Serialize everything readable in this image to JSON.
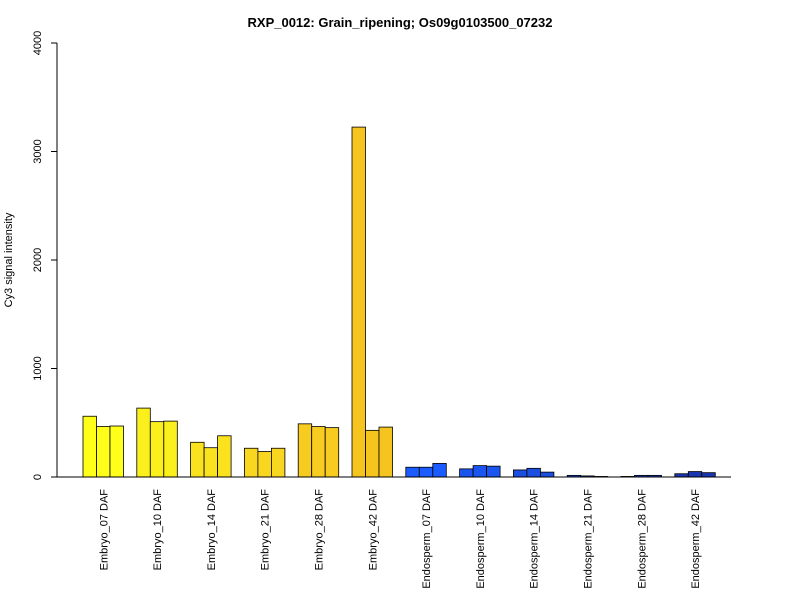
{
  "chart_data": {
    "type": "bar",
    "title": "RXP_0012: Grain_ripening; Os09g0103500_07232",
    "xlabel": "",
    "ylabel": "Cy3 signal intensity",
    "ylim": [
      0,
      4000
    ],
    "yticks": [
      "0",
      "1000",
      "2000",
      "3000",
      "4000"
    ],
    "grid": false,
    "categories": [
      "Embryo_07 DAF",
      "Embryo_10 DAF",
      "Embryo_14 DAF",
      "Embryo_21 DAF",
      "Embryo_28 DAF",
      "Embryo_42 DAF",
      "Endosperm_07 DAF",
      "Endosperm_10 DAF",
      "Endosperm_14 DAF",
      "Endosperm_21 DAF",
      "Endosperm_28 DAF",
      "Endosperm_42 DAF"
    ],
    "group_colors": [
      "#ffff1a",
      "#fcf01c",
      "#fbe21e",
      "#f9d61f",
      "#f7cb20",
      "#f5c41e",
      "#1a5cff",
      "#1a55f0",
      "#1a4fe0",
      "#1a45cf",
      "#1a3fbf",
      "#1a36b0"
    ],
    "values": [
      [
        560,
        465,
        470
      ],
      [
        635,
        510,
        515
      ],
      [
        320,
        270,
        380
      ],
      [
        265,
        235,
        265
      ],
      [
        490,
        465,
        455
      ],
      [
        3225,
        430,
        460
      ],
      [
        90,
        90,
        125
      ],
      [
        75,
        105,
        100
      ],
      [
        65,
        80,
        45
      ],
      [
        15,
        10,
        5
      ],
      [
        5,
        15,
        15
      ],
      [
        30,
        50,
        40
      ]
    ]
  }
}
